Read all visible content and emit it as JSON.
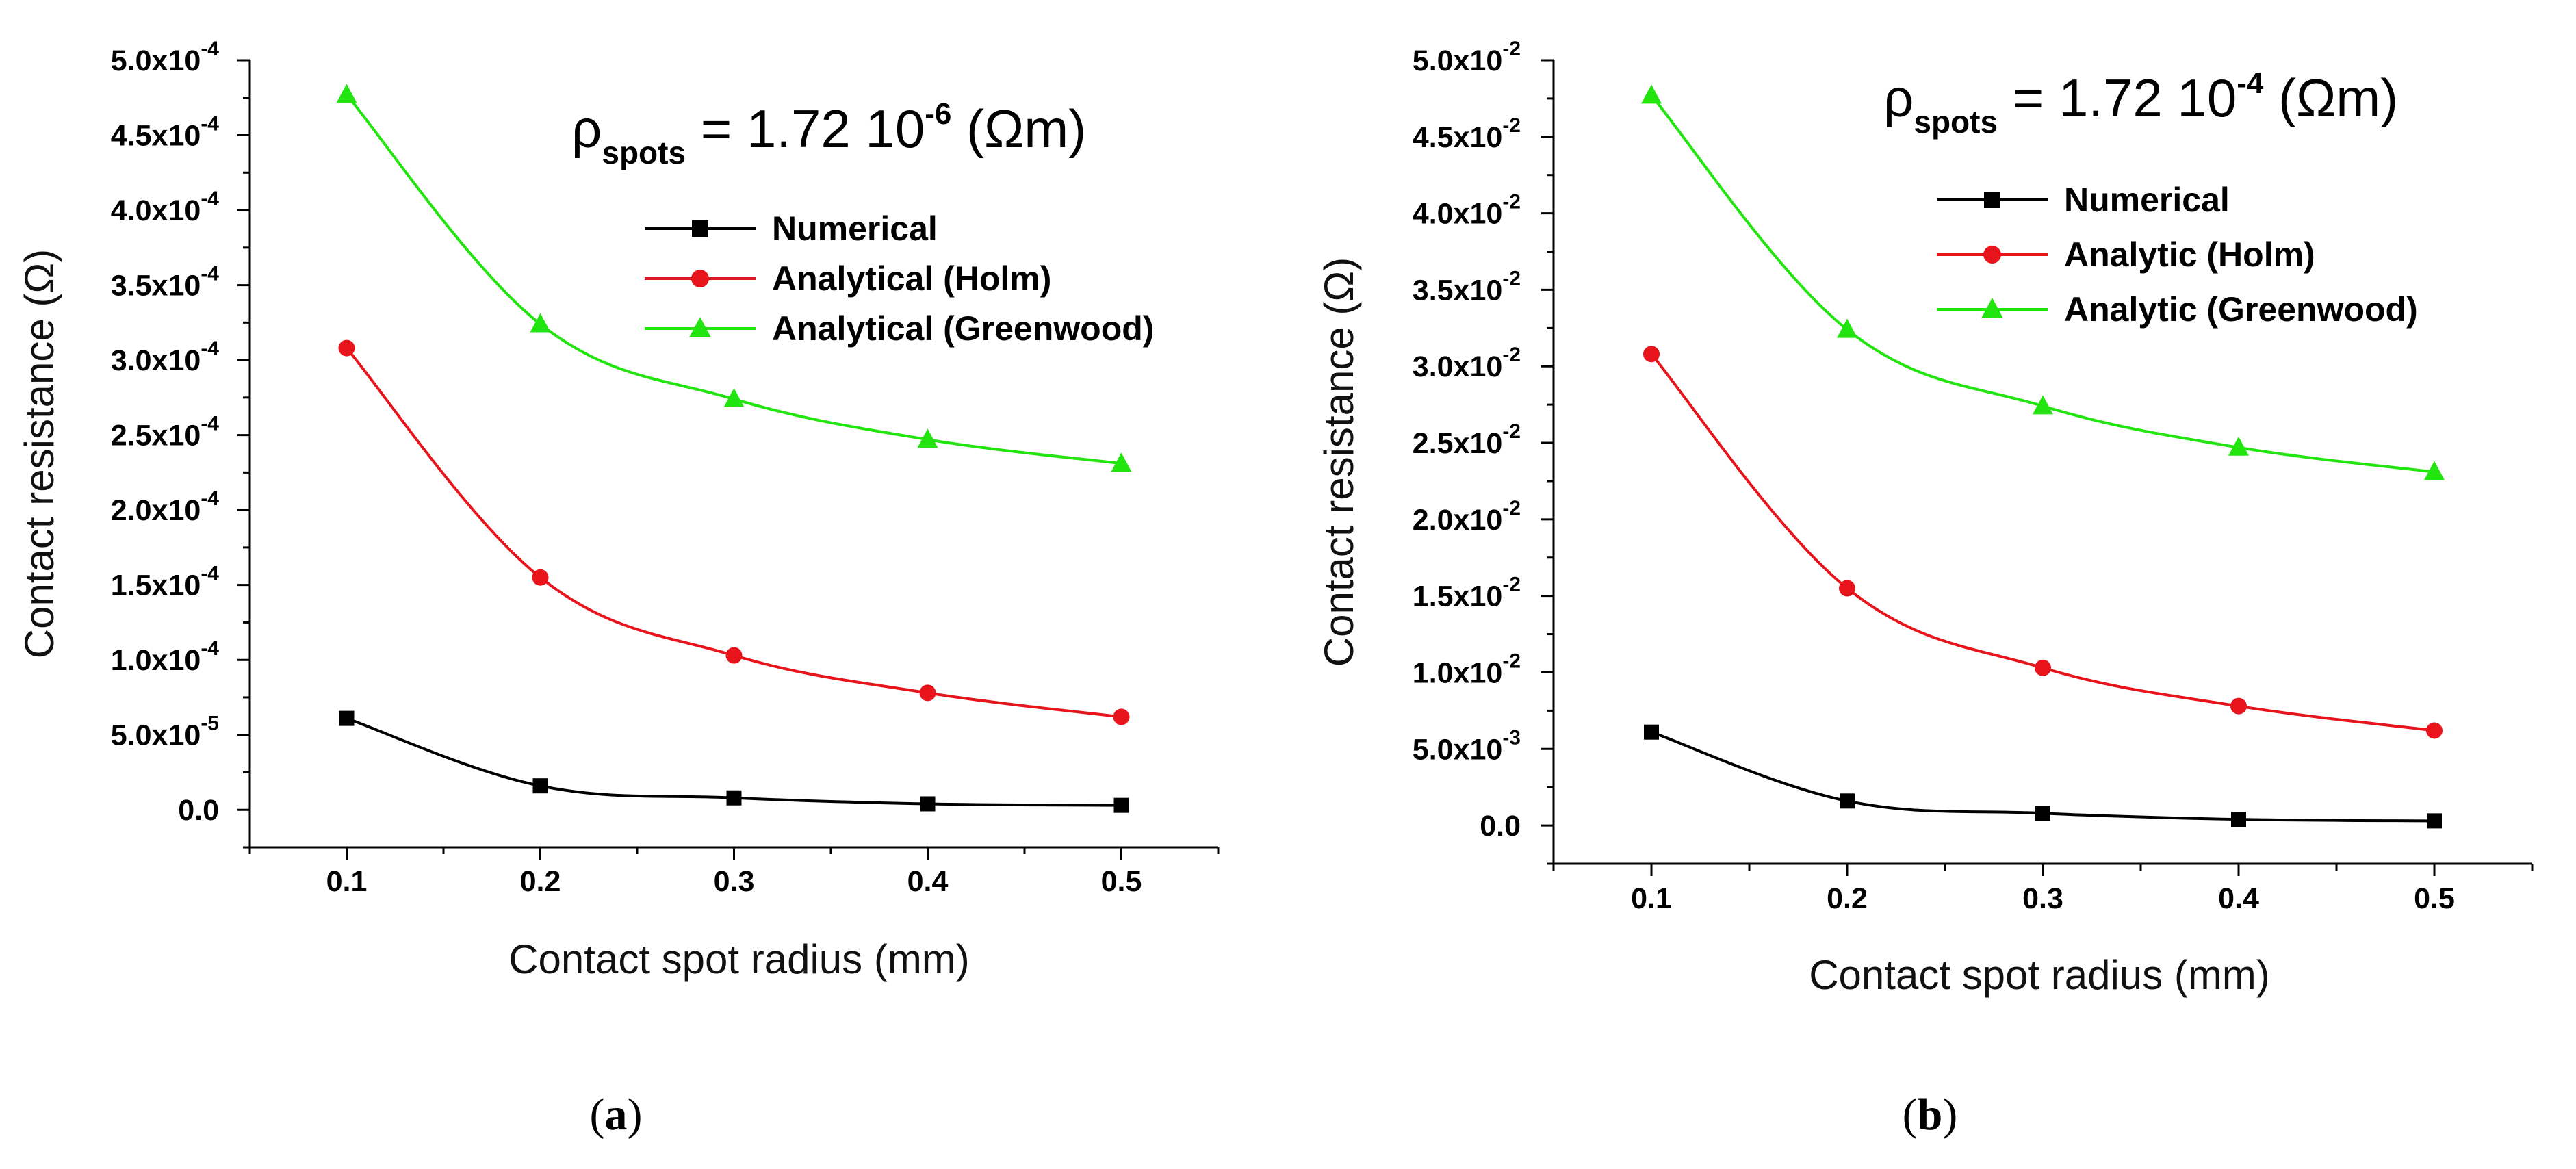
{
  "chart_data": [
    {
      "type": "scatter",
      "panel_label": {
        "open": "(",
        "letter": "a",
        "close": ")"
      },
      "annotation": {
        "rho": "ρ",
        "subscript": "spots",
        "text": " = 1.72 10",
        "exponent": "-6",
        "unit": " (Ωm)"
      },
      "xlabel": "Contact spot radius (mm)",
      "ylabel": "Contact resistance (Ω)",
      "xlim": [
        0.05,
        0.55
      ],
      "ylim": [
        -0.25,
        5.0
      ],
      "x_ticks": [
        0.1,
        0.2,
        0.3,
        0.4,
        0.5
      ],
      "x_tick_labels": [
        "0.1",
        "0.2",
        "0.3",
        "0.4",
        "0.5"
      ],
      "y_ticks": [
        0.0,
        0.5,
        1.0,
        1.5,
        2.0,
        2.5,
        3.0,
        3.5,
        4.0,
        4.5,
        5.0
      ],
      "y_tick_labels": [
        {
          "m": "0.0",
          "e": ""
        },
        {
          "m": "5.0x10",
          "e": "-5"
        },
        {
          "m": "1.0x10",
          "e": "-4"
        },
        {
          "m": "1.5x10",
          "e": "-4"
        },
        {
          "m": "2.0x10",
          "e": "-4"
        },
        {
          "m": "2.5x10",
          "e": "-4"
        },
        {
          "m": "3.0x10",
          "e": "-4"
        },
        {
          "m": "3.5x10",
          "e": "-4"
        },
        {
          "m": "4.0x10",
          "e": "-4"
        },
        {
          "m": "4.5x10",
          "e": "-4"
        },
        {
          "m": "5.0x10",
          "e": "-4"
        }
      ],
      "y_scale_note": "values in units of 1e-4 ohm",
      "x": [
        0.1,
        0.2,
        0.3,
        0.4,
        0.5
      ],
      "series": [
        {
          "name": "Numerical",
          "marker": "square",
          "color": "#000000",
          "values": [
            0.61,
            0.16,
            0.08,
            0.04,
            0.03
          ]
        },
        {
          "name": "Analytical (Holm)",
          "marker": "circle",
          "color": "#e8141b",
          "values": [
            3.08,
            1.55,
            1.03,
            0.78,
            0.62
          ]
        },
        {
          "name": "Analytical (Greenwood)",
          "marker": "triangle",
          "color": "#22e40e",
          "values": [
            4.77,
            3.24,
            2.74,
            2.47,
            2.31
          ]
        }
      ]
    },
    {
      "type": "scatter",
      "panel_label": {
        "open": "(",
        "letter": "b",
        "close": ")"
      },
      "annotation": {
        "rho": "ρ",
        "subscript": "spots",
        "text": " = 1.72 10",
        "exponent": "-4",
        "unit": " (Ωm)"
      },
      "xlabel": "Contact spot radius (mm)",
      "ylabel": "Contact resistance (Ω)",
      "xlim": [
        0.05,
        0.55
      ],
      "ylim": [
        -0.25,
        5.0
      ],
      "x_ticks": [
        0.1,
        0.2,
        0.3,
        0.4,
        0.5
      ],
      "x_tick_labels": [
        "0.1",
        "0.2",
        "0.3",
        "0.4",
        "0.5"
      ],
      "y_ticks": [
        0.0,
        0.5,
        1.0,
        1.5,
        2.0,
        2.5,
        3.0,
        3.5,
        4.0,
        4.5,
        5.0
      ],
      "y_tick_labels": [
        {
          "m": "0.0",
          "e": ""
        },
        {
          "m": "5.0x10",
          "e": "-3"
        },
        {
          "m": "1.0x10",
          "e": "-2"
        },
        {
          "m": "1.5x10",
          "e": "-2"
        },
        {
          "m": "2.0x10",
          "e": "-2"
        },
        {
          "m": "2.5x10",
          "e": "-2"
        },
        {
          "m": "3.0x10",
          "e": "-2"
        },
        {
          "m": "3.5x10",
          "e": "-2"
        },
        {
          "m": "4.0x10",
          "e": "-2"
        },
        {
          "m": "4.5x10",
          "e": "-2"
        },
        {
          "m": "5.0x10",
          "e": "-2"
        }
      ],
      "y_scale_note": "values in units of 1e-2 ohm",
      "x": [
        0.1,
        0.2,
        0.3,
        0.4,
        0.5
      ],
      "series": [
        {
          "name": "Numerical",
          "marker": "square",
          "color": "#000000",
          "values": [
            0.61,
            0.16,
            0.08,
            0.04,
            0.03
          ]
        },
        {
          "name": "Analytic (Holm)",
          "marker": "circle",
          "color": "#e8141b",
          "values": [
            3.08,
            1.55,
            1.03,
            0.78,
            0.62
          ]
        },
        {
          "name": "Analytic (Greenwood)",
          "marker": "triangle",
          "color": "#22e40e",
          "values": [
            4.77,
            3.24,
            2.74,
            2.47,
            2.31
          ]
        }
      ]
    }
  ]
}
